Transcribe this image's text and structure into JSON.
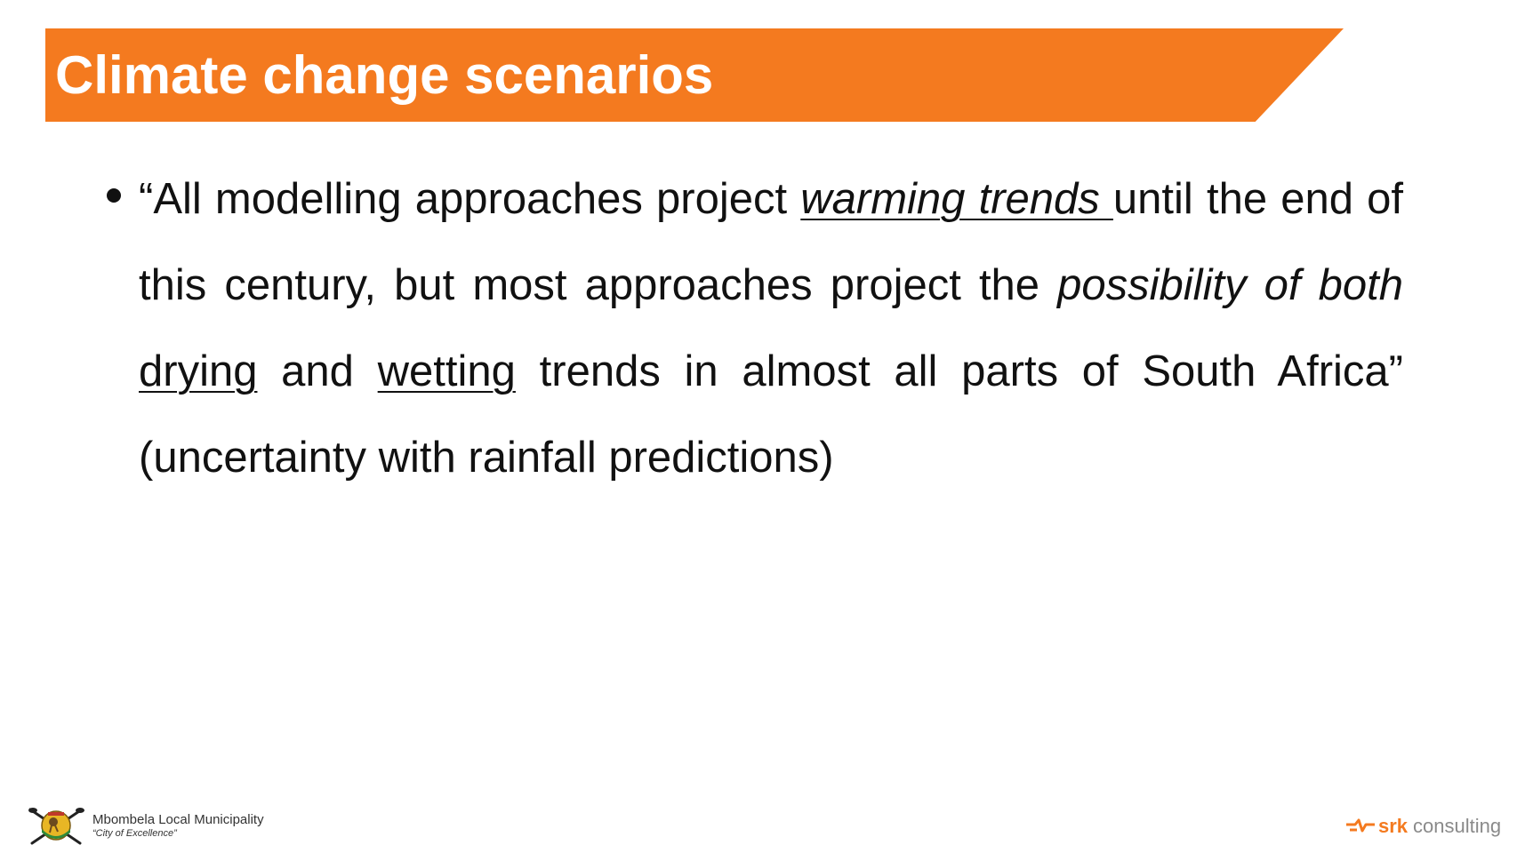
{
  "slide": {
    "title": "Climate change scenarios",
    "bullet": {
      "part1": "“All modelling approaches project ",
      "warming_trends": "warming trends ",
      "part2": "until the end of this century, but most approaches project the ",
      "possibility": "possibility of both",
      "space1": " ",
      "drying": "drying",
      "and": " and ",
      "wetting": "wetting",
      "part3": " trends in almost all parts of South Africa” (uncertainty with rainfall predictions)"
    }
  },
  "footer": {
    "municipality_name": "Mbombela Local Municipality",
    "municipality_motto": "“City of Excellence”",
    "company_name": "srk",
    "company_suffix": "consulting"
  },
  "colors": {
    "accent": "#f47a1f",
    "text": "#111111"
  },
  "icons": {
    "municipality_logo": "mbombela-emblem-icon",
    "company_logo": "srk-mark-icon"
  }
}
